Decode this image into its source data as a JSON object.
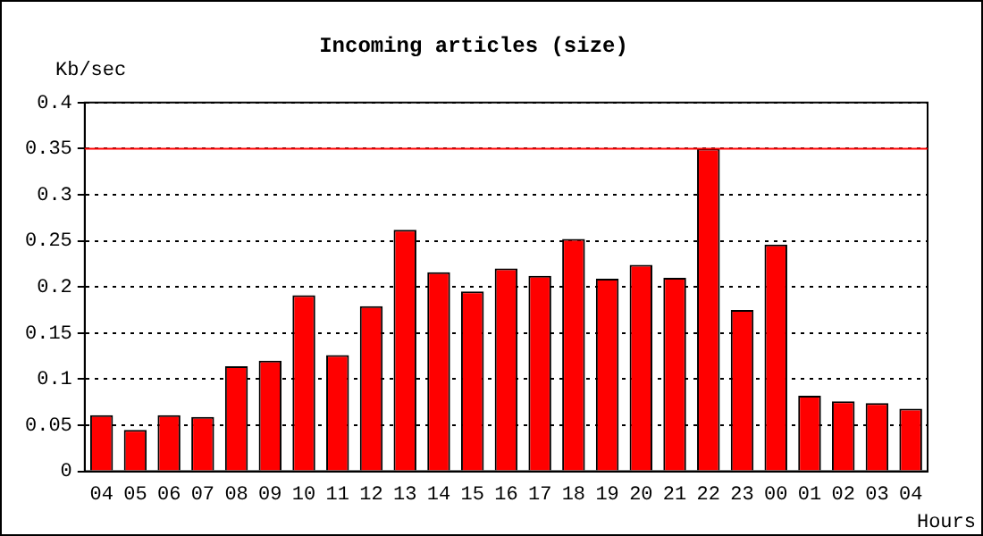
{
  "chart_data": {
    "type": "bar",
    "title": "Incoming articles (size)",
    "ylabel": "Kb/sec",
    "xlabel": "Hours",
    "categories": [
      "04",
      "05",
      "06",
      "07",
      "08",
      "09",
      "10",
      "11",
      "12",
      "13",
      "14",
      "15",
      "16",
      "17",
      "18",
      "19",
      "20",
      "21",
      "22",
      "23",
      "00",
      "01",
      "02",
      "03",
      "04"
    ],
    "series": [
      {
        "color": "#ff0000",
        "values": [
          0.061,
          0.045,
          0.061,
          0.059,
          0.114,
          0.12,
          0.191,
          0.126,
          0.179,
          0.262,
          0.216,
          0.195,
          0.22,
          0.212,
          0.252,
          0.209,
          0.224,
          0.21,
          0.35,
          0.175,
          0.246,
          0.082,
          0.076,
          0.074,
          0.068
        ]
      }
    ],
    "ylim": [
      0,
      0.4
    ],
    "yticks": [
      0,
      0.05,
      0.1,
      0.15,
      0.2,
      0.25,
      0.3,
      0.35,
      0.4
    ],
    "grid": "y",
    "line_style": "dotted",
    "ref_lines": [
      {
        "axis": "y",
        "value": 0.35,
        "color": "#ff0000"
      }
    ]
  }
}
